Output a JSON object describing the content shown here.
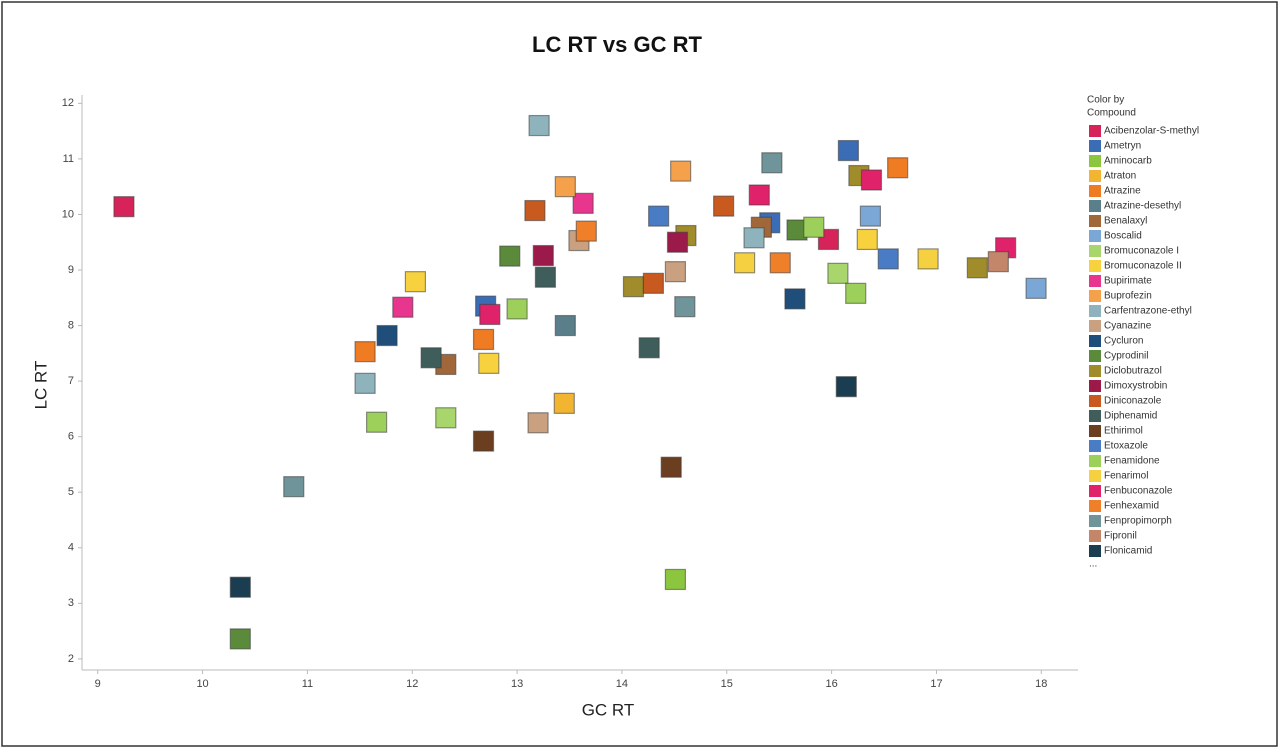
{
  "chart_data": {
    "type": "scatter",
    "title": "LC RT vs GC RT",
    "x_label": "GC RT",
    "y_label": "LC RT",
    "legend_title": "Color by Compound",
    "legend_more": "...",
    "legend_position": "right",
    "xlim": [
      8.85,
      18.35
    ],
    "ylim": [
      1.8,
      12.15
    ],
    "xticks": [
      9,
      10,
      11,
      12,
      13,
      14,
      15,
      16,
      17,
      18
    ],
    "yticks": [
      2,
      3,
      4,
      5,
      6,
      7,
      8,
      9,
      10,
      11,
      12
    ],
    "series": [
      {
        "name": "Acibenzolar-S-methyl",
        "color": "#d6245a",
        "x": [
          9.25,
          15.97
        ],
        "values": [
          10.14,
          9.55
        ]
      },
      {
        "name": "Ametryn",
        "color": "#3a6db5",
        "x": [
          12.7,
          15.41,
          16.16
        ],
        "values": [
          8.35,
          9.85,
          11.15
        ]
      },
      {
        "name": "Aminocarb",
        "color": "#8cc63f",
        "x": [
          14.51
        ],
        "values": [
          3.43
        ]
      },
      {
        "name": "Atraton",
        "color": "#f2b531",
        "x": [
          13.45
        ],
        "values": [
          6.6
        ]
      },
      {
        "name": "Atrazine",
        "color": "#ef7b22",
        "x": [
          11.55,
          12.68,
          16.63
        ],
        "values": [
          7.53,
          7.75,
          10.84
        ]
      },
      {
        "name": "Atrazine-desethyl",
        "color": "#5b7f8a",
        "x": [
          13.46
        ],
        "values": [
          8.0
        ]
      },
      {
        "name": "Benalaxyl",
        "color": "#a0673a",
        "x": [
          12.32,
          15.33
        ],
        "values": [
          7.3,
          9.77
        ]
      },
      {
        "name": "Boscalid",
        "color": "#7ba7d6",
        "x": [
          16.37,
          17.95
        ],
        "values": [
          9.97,
          8.67
        ]
      },
      {
        "name": "Bromuconazole I",
        "color": "#a9d66c",
        "x": [
          12.32,
          16.06
        ],
        "values": [
          6.34,
          8.94
        ]
      },
      {
        "name": "Bromuconazole II",
        "color": "#f7d23e",
        "x": [
          12.03,
          12.73,
          16.34
        ],
        "values": [
          8.79,
          7.32,
          9.55
        ]
      },
      {
        "name": "Bupirimate",
        "color": "#e8368f",
        "x": [
          11.91,
          13.63
        ],
        "values": [
          8.33,
          10.2
        ]
      },
      {
        "name": "Buprofezin",
        "color": "#f5a04b",
        "x": [
          13.46,
          14.56
        ],
        "values": [
          10.5,
          10.78
        ]
      },
      {
        "name": "Carfentrazone-ethyl",
        "color": "#8fb3bd",
        "x": [
          11.55,
          13.21,
          15.26
        ],
        "values": [
          6.96,
          11.6,
          9.58
        ]
      },
      {
        "name": "Cyanazine",
        "color": "#c9a080",
        "x": [
          13.2,
          13.59,
          14.51
        ],
        "values": [
          6.25,
          9.53,
          8.97
        ]
      },
      {
        "name": "Cycluron",
        "color": "#1f4e7a",
        "x": [
          11.76,
          15.65
        ],
        "values": [
          7.82,
          8.48
        ]
      },
      {
        "name": "Cyprodinil",
        "color": "#5a8a3a",
        "x": [
          10.36,
          12.93,
          15.67
        ],
        "values": [
          2.36,
          9.25,
          9.72
        ]
      },
      {
        "name": "Diclobutrazol",
        "color": "#a08c2a",
        "x": [
          14.11,
          14.61,
          16.26,
          17.39
        ],
        "values": [
          8.7,
          9.62,
          10.7,
          9.04
        ]
      },
      {
        "name": "Dimoxystrobin",
        "color": "#9c1a4a",
        "x": [
          13.25,
          14.53
        ],
        "values": [
          9.26,
          9.5
        ]
      },
      {
        "name": "Diniconazole",
        "color": "#c8591f",
        "x": [
          13.17,
          14.3,
          14.97
        ],
        "values": [
          10.07,
          8.76,
          10.15
        ]
      },
      {
        "name": "Diphenamid",
        "color": "#3f5d5a",
        "x": [
          12.18,
          13.27,
          14.26
        ],
        "values": [
          7.42,
          8.87,
          7.6
        ]
      },
      {
        "name": "Ethirimol",
        "color": "#6b3e1f",
        "x": [
          12.68,
          14.47
        ],
        "values": [
          5.92,
          5.45
        ]
      },
      {
        "name": "Etoxazole",
        "color": "#4a7cc6",
        "x": [
          14.35,
          16.54
        ],
        "values": [
          9.97,
          9.2
        ]
      },
      {
        "name": "Fenamidone",
        "color": "#9dd05a",
        "x": [
          11.66,
          13.0,
          15.83,
          16.23
        ],
        "values": [
          6.26,
          8.3,
          9.77,
          8.58
        ]
      },
      {
        "name": "Fenarimol",
        "color": "#f5d040",
        "x": [
          15.17,
          16.92
        ],
        "values": [
          9.13,
          9.2
        ]
      },
      {
        "name": "Fenbuconazole",
        "color": "#e0226a",
        "x": [
          12.74,
          15.31,
          16.38,
          17.66
        ],
        "values": [
          8.2,
          10.35,
          10.62,
          9.4
        ]
      },
      {
        "name": "Fenhexamid",
        "color": "#f07f2a",
        "x": [
          13.66,
          15.51
        ],
        "values": [
          9.7,
          9.13
        ]
      },
      {
        "name": "Fenpropimorph",
        "color": "#6f9499",
        "x": [
          10.87,
          14.6,
          15.43
        ],
        "values": [
          5.1,
          8.34,
          10.93
        ]
      },
      {
        "name": "Fipronil",
        "color": "#c4866a",
        "x": [
          17.59
        ],
        "values": [
          9.15
        ]
      },
      {
        "name": "Flonicamid",
        "color": "#1b3d52",
        "x": [
          10.36,
          16.14
        ],
        "values": [
          3.29,
          6.9
        ]
      }
    ]
  }
}
